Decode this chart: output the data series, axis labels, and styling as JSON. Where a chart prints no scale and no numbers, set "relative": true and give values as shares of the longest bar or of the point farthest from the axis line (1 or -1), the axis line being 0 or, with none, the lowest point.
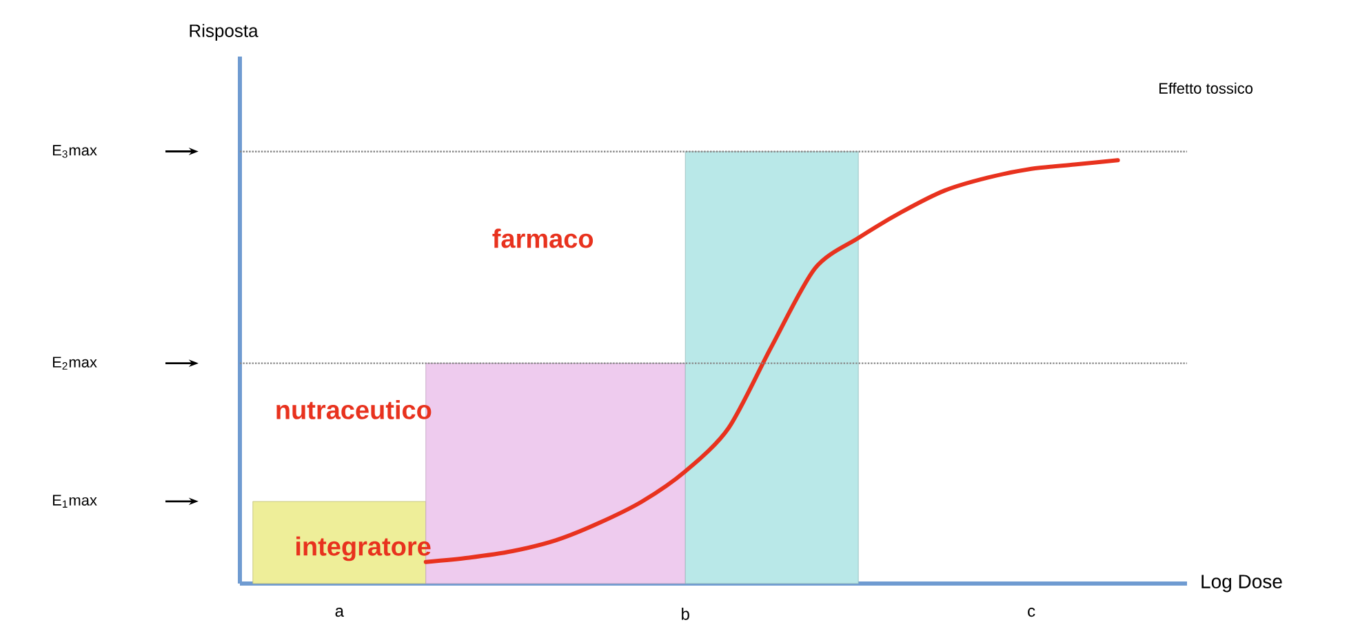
{
  "chart_data": {
    "type": "line",
    "xlabel": "Log Dose",
    "relative": true,
    "marker": "none",
    "categories": [
      null,
      null,
      "a",
      null,
      null,
      null,
      null,
      null,
      null,
      null,
      "b",
      null,
      null,
      null,
      null,
      null,
      null,
      null,
      "c",
      null,
      null,
      null
    ],
    "series": [
      {
        "type": "area",
        "color": "#eeee99",
        "values": [
          0.19,
          0.19,
          0.19,
          0.19,
          0.19,
          null,
          null,
          null,
          null,
          null,
          null,
          null,
          null,
          null,
          null,
          null,
          null,
          null,
          null,
          null,
          null,
          null
        ]
      },
      {
        "type": "area",
        "color": "#eecbee",
        "values": [
          null,
          null,
          null,
          null,
          0.51,
          0.51,
          0.51,
          0.51,
          0.51,
          0.51,
          0.51,
          null,
          null,
          null,
          null,
          null,
          null,
          null,
          null,
          null,
          null,
          null
        ]
      },
      {
        "type": "area",
        "color": "#b9e8e8",
        "values": [
          null,
          null,
          null,
          null,
          null,
          null,
          null,
          null,
          null,
          null,
          1.0,
          1.0,
          1.0,
          1.0,
          1.0,
          null,
          null,
          null,
          null,
          null,
          null,
          null
        ]
      },
      {
        "color": "#e8321e",
        "values": [
          null,
          null,
          null,
          null,
          0.05,
          0.06,
          0.075,
          0.1,
          0.14,
          0.19,
          0.26,
          0.36,
          0.55,
          0.73,
          0.8,
          0.86,
          0.91,
          0.94,
          0.96,
          0.97,
          0.98,
          null
        ]
      }
    ],
    "ref_lines": [
      {
        "axis": "y",
        "value": 0.51,
        "color": "#888888",
        "line_style": "dotted"
      },
      {
        "axis": "y",
        "value": 1.0,
        "color": "#888888",
        "line_style": "dotted"
      }
    ],
    "annotations": [
      "integratore",
      "nutraceutico",
      "farmaco",
      "Effetto tossico",
      "E$_{1}$max",
      "E$_{2}$max",
      "E$_{3}$max",
      "Risposta"
    ]
  }
}
